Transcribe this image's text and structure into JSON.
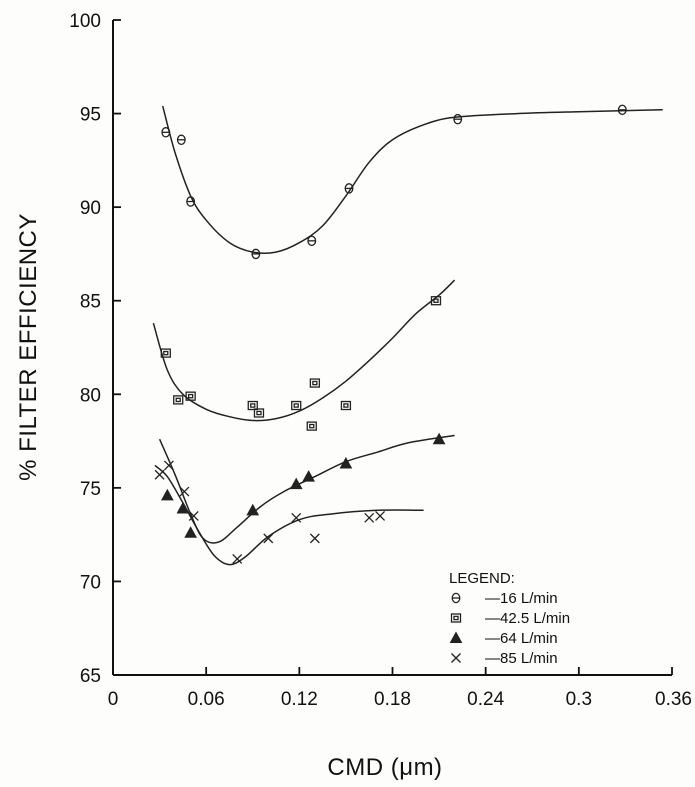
{
  "chart_data": {
    "type": "scatter",
    "title": "",
    "xlabel": "CMD (μm)",
    "ylabel": "% FILTER EFFICIENCY",
    "xlim": [
      0,
      0.36
    ],
    "ylim": [
      65,
      100
    ],
    "x_ticks": [
      0,
      0.06,
      0.12,
      0.18,
      0.24,
      0.3,
      0.36
    ],
    "x_tick_labels": [
      "0",
      "0.06",
      "0.12",
      "0.18",
      "0.24",
      "0.3",
      "0.36"
    ],
    "y_ticks": [
      65,
      70,
      75,
      80,
      85,
      90,
      95,
      100
    ],
    "y_tick_labels": [
      "65",
      "70",
      "75",
      "80",
      "85",
      "90",
      "95",
      "100"
    ],
    "grid": false,
    "legend_title": "LEGEND:",
    "legend_position": "bottom-right",
    "series": [
      {
        "name": "—16 L/min",
        "marker": "circle",
        "points": [
          [
            0.034,
            94.0
          ],
          [
            0.044,
            93.6
          ],
          [
            0.05,
            90.3
          ],
          [
            0.092,
            87.5
          ],
          [
            0.128,
            88.2
          ],
          [
            0.152,
            91.0
          ],
          [
            0.222,
            94.7
          ],
          [
            0.328,
            95.2
          ]
        ],
        "fit": [
          [
            0.032,
            95.4
          ],
          [
            0.04,
            92.9
          ],
          [
            0.05,
            90.6
          ],
          [
            0.06,
            89.3
          ],
          [
            0.075,
            88.1
          ],
          [
            0.09,
            87.6
          ],
          [
            0.105,
            87.6
          ],
          [
            0.12,
            88.1
          ],
          [
            0.135,
            89.0
          ],
          [
            0.15,
            90.6
          ],
          [
            0.165,
            92.4
          ],
          [
            0.18,
            93.6
          ],
          [
            0.2,
            94.4
          ],
          [
            0.22,
            94.8
          ],
          [
            0.26,
            95.0
          ],
          [
            0.3,
            95.1
          ],
          [
            0.354,
            95.2
          ]
        ]
      },
      {
        "name": "—42.5 L/min",
        "marker": "square",
        "points": [
          [
            0.034,
            82.2
          ],
          [
            0.042,
            79.7
          ],
          [
            0.05,
            79.9
          ],
          [
            0.09,
            79.4
          ],
          [
            0.094,
            79.0
          ],
          [
            0.118,
            79.4
          ],
          [
            0.128,
            78.3
          ],
          [
            0.13,
            80.6
          ],
          [
            0.15,
            79.4
          ],
          [
            0.208,
            85.0
          ]
        ],
        "fit": [
          [
            0.026,
            83.8
          ],
          [
            0.035,
            81.3
          ],
          [
            0.045,
            80.0
          ],
          [
            0.06,
            79.2
          ],
          [
            0.075,
            78.8
          ],
          [
            0.09,
            78.6
          ],
          [
            0.105,
            78.7
          ],
          [
            0.12,
            79.1
          ],
          [
            0.135,
            79.8
          ],
          [
            0.15,
            80.7
          ],
          [
            0.165,
            81.8
          ],
          [
            0.18,
            83.0
          ],
          [
            0.195,
            84.3
          ],
          [
            0.21,
            85.3
          ],
          [
            0.22,
            86.1
          ]
        ]
      },
      {
        "name": "—64 L/min",
        "marker": "triangle",
        "points": [
          [
            0.035,
            74.6
          ],
          [
            0.045,
            73.9
          ],
          [
            0.05,
            72.6
          ],
          [
            0.09,
            73.8
          ],
          [
            0.118,
            75.2
          ],
          [
            0.126,
            75.6
          ],
          [
            0.15,
            76.3
          ],
          [
            0.21,
            77.6
          ]
        ],
        "fit": [
          [
            0.03,
            77.6
          ],
          [
            0.04,
            75.7
          ],
          [
            0.05,
            73.6
          ],
          [
            0.058,
            72.3
          ],
          [
            0.068,
            72.1
          ],
          [
            0.08,
            72.9
          ],
          [
            0.095,
            74.0
          ],
          [
            0.11,
            74.8
          ],
          [
            0.13,
            75.6
          ],
          [
            0.15,
            76.4
          ],
          [
            0.17,
            76.9
          ],
          [
            0.19,
            77.4
          ],
          [
            0.22,
            77.8
          ]
        ]
      },
      {
        "name": "—85 L/min",
        "marker": "x",
        "points": [
          [
            0.03,
            75.7
          ],
          [
            0.036,
            76.2
          ],
          [
            0.046,
            74.8
          ],
          [
            0.052,
            73.5
          ],
          [
            0.08,
            71.2
          ],
          [
            0.1,
            72.3
          ],
          [
            0.118,
            73.4
          ],
          [
            0.13,
            72.3
          ],
          [
            0.165,
            73.4
          ],
          [
            0.172,
            73.5
          ]
        ],
        "fit": [
          [
            0.027,
            76.2
          ],
          [
            0.035,
            75.6
          ],
          [
            0.045,
            74.2
          ],
          [
            0.055,
            72.7
          ],
          [
            0.065,
            71.4
          ],
          [
            0.075,
            70.9
          ],
          [
            0.085,
            71.3
          ],
          [
            0.1,
            72.4
          ],
          [
            0.12,
            73.3
          ],
          [
            0.14,
            73.6
          ],
          [
            0.17,
            73.8
          ],
          [
            0.2,
            73.8
          ]
        ]
      }
    ]
  }
}
